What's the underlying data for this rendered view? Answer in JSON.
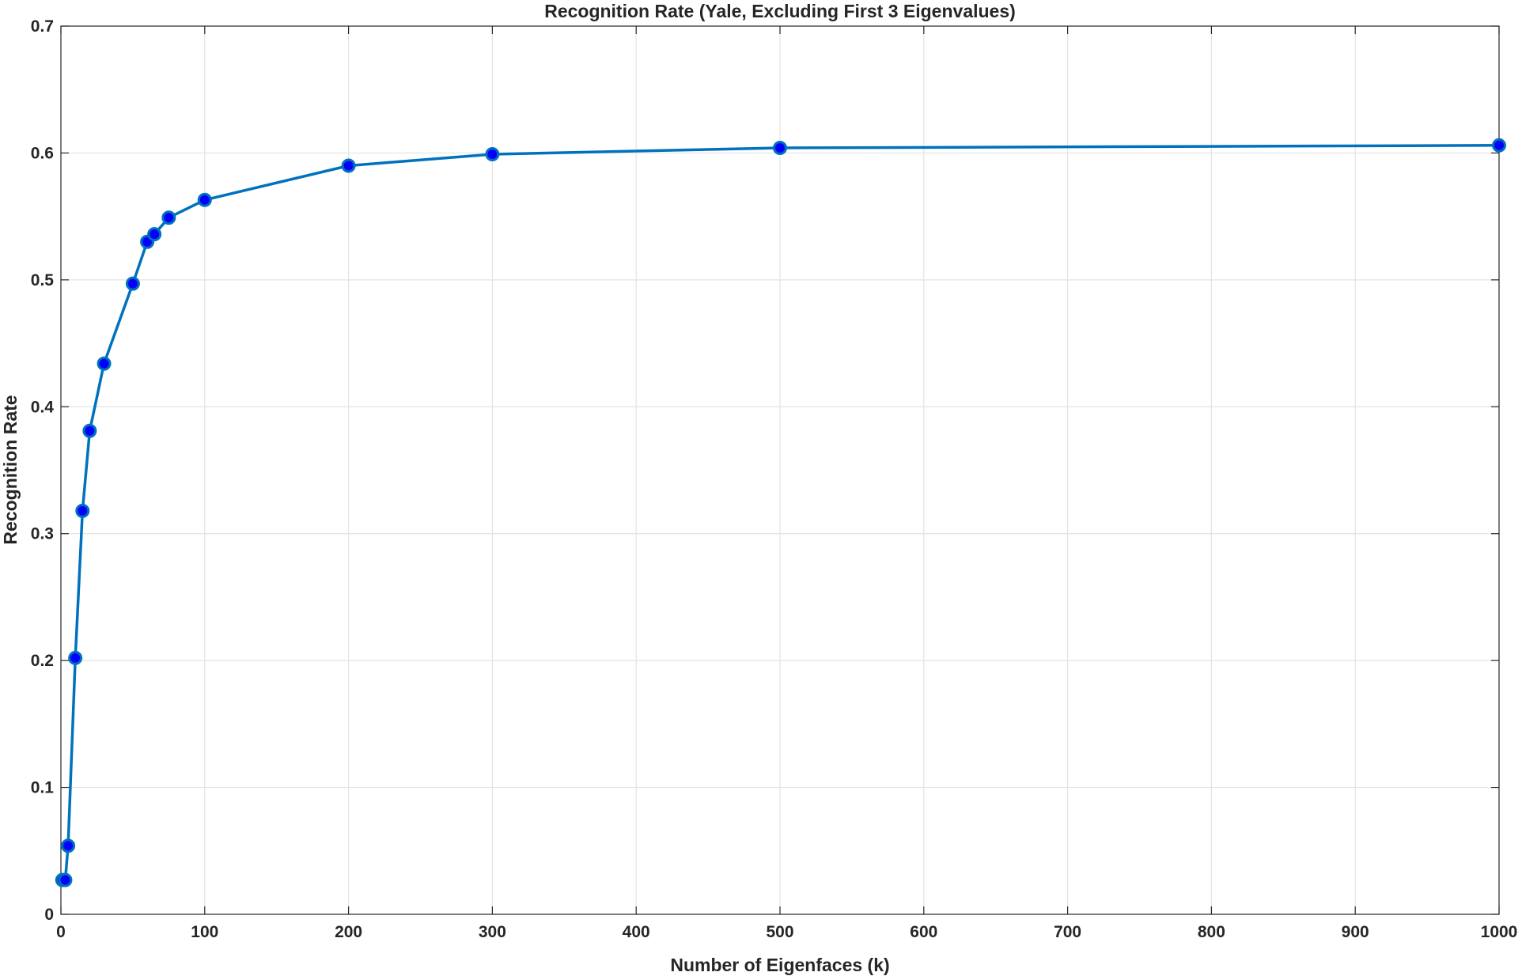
{
  "chart_data": {
    "type": "line",
    "title": "Recognition Rate (Yale, Excluding First 3 Eigenvalues)",
    "xlabel": "Number of Eigenfaces (k)",
    "ylabel": "Recognition Rate",
    "xlim": [
      0,
      1000
    ],
    "ylim": [
      0,
      0.7
    ],
    "xticks": [
      0,
      100,
      200,
      300,
      400,
      500,
      600,
      700,
      800,
      900,
      1000
    ],
    "yticks": [
      0,
      0.1,
      0.2,
      0.3,
      0.4,
      0.5,
      0.6,
      0.7
    ],
    "xtick_labels": [
      "0",
      "100",
      "200",
      "300",
      "400",
      "500",
      "600",
      "700",
      "800",
      "900",
      "1000"
    ],
    "ytick_labels": [
      "0",
      "0.1",
      "0.2",
      "0.3",
      "0.4",
      "0.5",
      "0.6",
      "0.7"
    ],
    "grid": true,
    "series": [
      {
        "x": [
          1,
          3,
          5,
          10,
          15,
          20,
          30,
          50,
          60,
          65,
          75,
          100,
          200,
          300,
          500,
          1000
        ],
        "y": [
          0.027,
          0.027,
          0.054,
          0.202,
          0.318,
          0.381,
          0.434,
          0.497,
          0.53,
          0.536,
          0.549,
          0.563,
          0.59,
          0.599,
          0.604,
          0.606
        ],
        "line_color": "#0072BD",
        "marker": "circle",
        "marker_fill": "#0000FF",
        "marker_edge": "#0072BD"
      }
    ]
  }
}
